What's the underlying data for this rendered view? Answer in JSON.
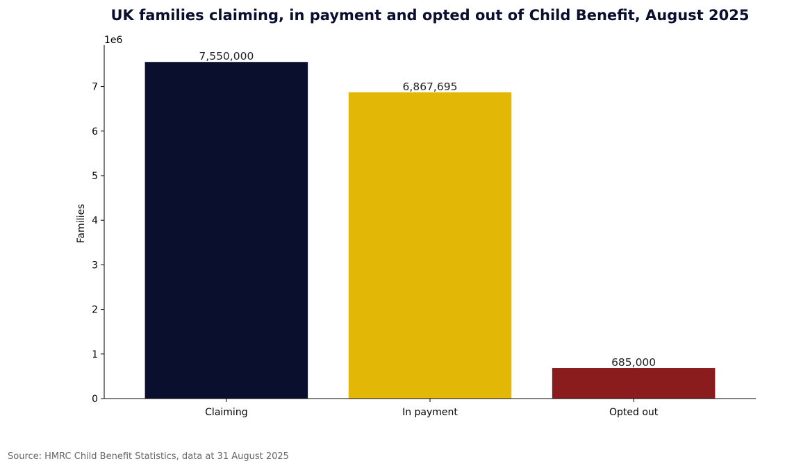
{
  "chart_data": {
    "type": "bar",
    "title": "UK families claiming, in payment and opted out of Child Benefit, August 2025",
    "xlabel": "",
    "ylabel": "Families",
    "y_offset_label": "1e6",
    "categories": [
      "Claiming",
      "In payment",
      "Opted out"
    ],
    "values": [
      7550000,
      6867695,
      685000
    ],
    "value_labels": [
      "7,550,000",
      "6,867,695",
      "685,000"
    ],
    "colors": [
      "#0b0f2e",
      "#e2b705",
      "#8b1c1e"
    ],
    "ylim": [
      0,
      7927500
    ],
    "yticks": [
      0,
      1000000,
      2000000,
      3000000,
      4000000,
      5000000,
      6000000,
      7000000
    ],
    "ytick_labels": [
      "0",
      "1",
      "2",
      "3",
      "4",
      "5",
      "6",
      "7"
    ],
    "grid": false,
    "legend": "none"
  },
  "source_note": "Source: HMRC Child Benefit Statistics, data at 31 August 2025"
}
